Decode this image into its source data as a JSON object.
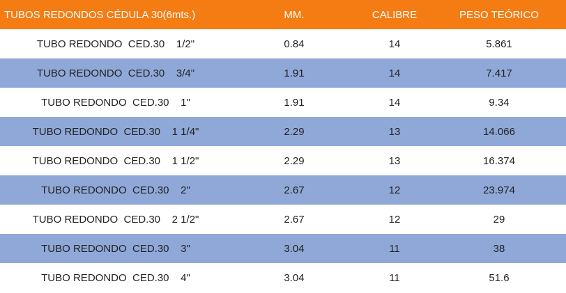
{
  "table": {
    "headers": [
      "TUBOS REDONDOS CÉDULA 30(6mts.)",
      "MM.",
      "CALIBRE",
      "PESO TEÓRICO"
    ],
    "rows": [
      [
        "TUBO REDONDO  CED.30    1/2\"",
        "0.84",
        "14",
        "5.861"
      ],
      [
        "TUBO REDONDO  CED.30    3/4\"",
        "1.91",
        "14",
        "7.417"
      ],
      [
        "TUBO REDONDO  CED.30    1\"",
        "1.91",
        "14",
        "9.34"
      ],
      [
        "TUBO REDONDO  CED.30    1 1/4\"",
        "2.29",
        "13",
        "14.066"
      ],
      [
        "TUBO REDONDO  CED.30    1 1/2\"",
        "2.29",
        "13",
        "16.374"
      ],
      [
        "TUBO REDONDO  CED.30    2\"",
        "2.67",
        "12",
        "23.974"
      ],
      [
        "TUBO REDONDO  CED.30    2 1/2\"",
        "2.67",
        "12",
        "29"
      ],
      [
        "TUBO REDONDO  CED.30    3\"",
        "3.04",
        "11",
        "38"
      ],
      [
        "TUBO REDONDO  CED.30    4\"",
        "3.04",
        "11",
        "51.6"
      ]
    ]
  },
  "colors": {
    "header_bg": "#f47c12",
    "stripe_bg": "#8fa8d8",
    "row_bg": "#ffffff"
  }
}
